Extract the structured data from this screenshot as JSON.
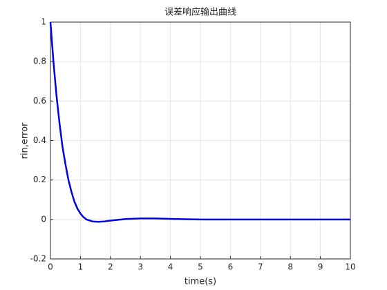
{
  "chart_data": {
    "type": "line",
    "title": "误差响应输出曲线",
    "x_label": "time(s)",
    "y_label": "rin,error",
    "x": [
      0,
      0.1,
      0.2,
      0.3,
      0.4,
      0.5,
      0.6,
      0.7,
      0.8,
      0.9,
      1.0,
      1.1,
      1.2,
      1.4,
      1.6,
      1.8,
      2.0,
      2.5,
      3.0,
      3.5,
      4.0,
      4.5,
      5,
      6,
      7,
      8,
      9,
      10
    ],
    "series": [
      {
        "name": "error",
        "color": "#0000e0",
        "values": [
          1,
          0.8,
          0.63,
          0.49,
          0.37,
          0.28,
          0.2,
          0.14,
          0.09,
          0.055,
          0.03,
          0.012,
          0.0,
          -0.01,
          -0.012,
          -0.01,
          -0.006,
          0.002,
          0.005,
          0.005,
          0.003,
          0.001,
          0,
          0,
          0,
          0,
          0,
          0
        ]
      }
    ],
    "xlim": [
      0,
      10
    ],
    "ylim": [
      -0.2,
      1
    ],
    "xticks": [
      0,
      1,
      2,
      3,
      4,
      5,
      6,
      7,
      8,
      9,
      10
    ],
    "yticks": [
      -0.2,
      0,
      0.2,
      0.4,
      0.6,
      0.8,
      1
    ],
    "grid": true
  }
}
